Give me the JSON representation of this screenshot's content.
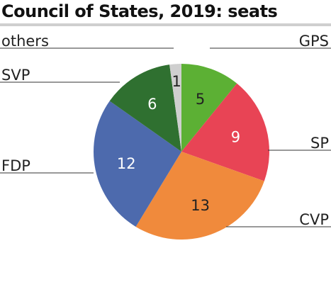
{
  "title": "Council of States, 2019: seats",
  "chart_data": {
    "type": "pie",
    "title": "Council of States, 2019: seats",
    "categories": [
      "GPS",
      "SP",
      "CVP",
      "FDP",
      "SVP",
      "others"
    ],
    "values": [
      5,
      9,
      13,
      12,
      6,
      1
    ],
    "colors": [
      "#5cb034",
      "#e84455",
      "#f08a3c",
      "#4d6aad",
      "#2f7030",
      "#cfcfcf"
    ],
    "value_label_colors": [
      "#222222",
      "#ffffff",
      "#222222",
      "#ffffff",
      "#ffffff",
      "#222222"
    ],
    "legend": "none",
    "labels": "leader-lines"
  }
}
